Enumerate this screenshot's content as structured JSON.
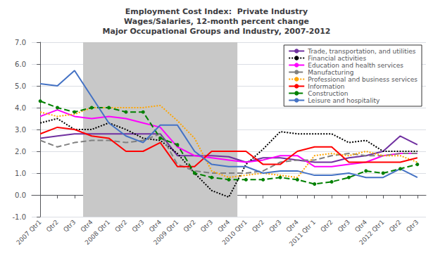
{
  "chart_data": {
    "type": "line",
    "title": "Employment Cost Index:  Private Industry\nWages/Salaries, 12-month percent change\nMajor Occupational Groups and Industry, 2007-2012",
    "categories": [
      "2007 Qtr1",
      "Qtr2",
      "Qtr3",
      "Qtr4",
      "2008 Qtr1",
      "Qtr2",
      "Qtr3",
      "Qtr4",
      "2009 Qtr1",
      "Qtr2",
      "Qtr3",
      "Qtr4",
      "2010 Qtr1",
      "Qtr2",
      "Qtr3",
      "Qtr4",
      "2011 Qtr 1",
      "Qtr2",
      "Qtr3",
      "Qtr4",
      "2012 Qtr1",
      "Qtr2",
      "Qtr3"
    ],
    "series": [
      {
        "name": "Trade, transportation, and utilities",
        "color": "#7030A0",
        "line_style": "solid",
        "values": [
          2.6,
          2.7,
          2.8,
          2.8,
          2.8,
          2.8,
          2.8,
          2.8,
          1.8,
          1.8,
          1.8,
          1.75,
          1.5,
          1.7,
          1.7,
          1.6,
          1.5,
          1.5,
          1.7,
          1.8,
          2.0,
          2.7,
          2.3
        ]
      },
      {
        "name": "Financial activities",
        "color": "#000000",
        "line_style": "dotted",
        "values": [
          3.3,
          3.5,
          3.0,
          3.0,
          3.3,
          3.0,
          2.6,
          2.5,
          1.9,
          1.0,
          0.2,
          -0.1,
          1.4,
          2.1,
          2.9,
          2.8,
          2.8,
          2.8,
          2.4,
          2.5,
          2.0,
          2.0,
          2.0
        ]
      },
      {
        "name": "Education and health services",
        "color": "#FF00FF",
        "line_style": "solid",
        "values": [
          3.6,
          3.9,
          3.6,
          3.5,
          3.6,
          3.5,
          3.3,
          3.1,
          2.2,
          1.8,
          1.7,
          1.6,
          1.5,
          1.6,
          1.8,
          1.8,
          1.3,
          1.3,
          1.4,
          1.5,
          1.8,
          1.9,
          1.9
        ]
      },
      {
        "name": "Manufacturing",
        "color": "#808080",
        "line_style": "dashed",
        "values": [
          2.5,
          2.2,
          2.4,
          2.5,
          2.5,
          2.4,
          2.5,
          2.8,
          1.4,
          1.1,
          1.0,
          1.0,
          1.0,
          1.1,
          1.5,
          1.6,
          1.6,
          1.8,
          1.9,
          1.8,
          1.8,
          1.9,
          1.9
        ]
      },
      {
        "name": "Professional and business services",
        "color": "#FFA500",
        "line_style": "dotted",
        "values": [
          3.8,
          3.6,
          3.7,
          4.0,
          4.0,
          4.0,
          4.0,
          4.1,
          3.4,
          2.6,
          1.1,
          0.8,
          0.9,
          1.0,
          0.9,
          0.8,
          1.8,
          1.9,
          1.8,
          2.0,
          1.8,
          1.8,
          1.5
        ]
      },
      {
        "name": "Information",
        "color": "#FF0000",
        "line_style": "solid",
        "values": [
          2.8,
          3.1,
          3.0,
          2.7,
          2.6,
          2.0,
          2.0,
          2.4,
          1.3,
          1.3,
          2.0,
          2.0,
          2.0,
          1.4,
          1.4,
          2.0,
          2.2,
          2.2,
          1.5,
          1.5,
          1.5,
          1.5,
          1.7
        ]
      },
      {
        "name": "Construction",
        "color": "#008000",
        "line_style": "dashed",
        "marker": "circle",
        "values": [
          4.3,
          4.0,
          3.8,
          4.0,
          4.0,
          3.8,
          3.8,
          2.6,
          2.3,
          1.0,
          0.8,
          0.7,
          0.7,
          0.7,
          0.8,
          0.7,
          0.5,
          0.6,
          0.8,
          1.1,
          1.0,
          1.2,
          1.4
        ]
      },
      {
        "name": "Leisure and hospitality",
        "color": "#4472C4",
        "line_style": "solid",
        "values": [
          5.1,
          5.0,
          5.7,
          4.5,
          3.3,
          2.7,
          2.4,
          3.2,
          3.2,
          2.0,
          1.4,
          1.3,
          1.3,
          1.0,
          1.1,
          1.1,
          0.9,
          0.9,
          1.0,
          0.8,
          0.8,
          1.2,
          0.8
        ]
      }
    ],
    "ylim": [
      -1.0,
      7.0
    ],
    "yticks": [
      {
        "value": -1.0,
        "label": "-1.0"
      },
      {
        "value": 0.0,
        "label": "0.0"
      },
      {
        "value": 1.0,
        "label": "1.0"
      },
      {
        "value": 2.0,
        "label": "2.0"
      },
      {
        "value": 3.0,
        "label": "3.0"
      },
      {
        "value": 4.0,
        "label": "4.0"
      },
      {
        "value": 5.0,
        "label": "5.0"
      },
      {
        "value": 6.0,
        "label": "6.0"
      },
      {
        "value": 7.0,
        "label": "7.0"
      }
    ],
    "grid": true,
    "legend": "upper right",
    "shade": {
      "start": 3,
      "end": 11,
      "color": "#C8C8C8"
    }
  }
}
